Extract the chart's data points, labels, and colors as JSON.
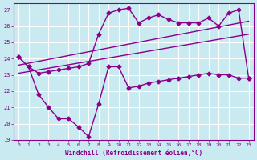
{
  "background_color": "#c8eaf0",
  "grid_color": "#ffffff",
  "line_color": "#8b008b",
  "xlabel": "Windchill (Refroidissement éolien,°C)",
  "xlim": [
    -0.5,
    23.5
  ],
  "ylim": [
    19,
    27.4
  ],
  "yticks": [
    19,
    20,
    21,
    22,
    23,
    24,
    25,
    26,
    27
  ],
  "xticks": [
    0,
    1,
    2,
    3,
    4,
    5,
    6,
    7,
    8,
    9,
    10,
    11,
    12,
    13,
    14,
    15,
    16,
    17,
    18,
    19,
    20,
    21,
    22,
    23
  ],
  "series": [
    {
      "x": [
        0,
        1,
        2,
        3,
        4,
        5,
        6,
        7,
        8,
        9,
        10,
        11,
        12,
        13,
        14,
        15,
        16,
        17,
        18,
        19,
        20,
        21,
        22,
        23
      ],
      "y": [
        24.1,
        23.5,
        23.1,
        23.2,
        23.3,
        23.4,
        23.5,
        23.7,
        25.5,
        26.8,
        27.0,
        27.1,
        26.2,
        26.5,
        26.7,
        26.4,
        26.2,
        26.2,
        26.2,
        26.5,
        26.0,
        26.8,
        27.0,
        22.8
      ],
      "marker": "D",
      "markersize": 2.5,
      "linewidth": 1.0
    },
    {
      "x": [
        0,
        1,
        2,
        3,
        4,
        5,
        6,
        7,
        8,
        9,
        10,
        11,
        12,
        13,
        14,
        15,
        16,
        17,
        18,
        19,
        20,
        21,
        22,
        23
      ],
      "y": [
        24.1,
        23.5,
        21.8,
        21.0,
        20.3,
        20.3,
        19.8,
        19.2,
        21.2,
        23.5,
        23.5,
        22.2,
        22.3,
        22.5,
        22.6,
        22.7,
        22.8,
        22.9,
        23.0,
        23.1,
        23.0,
        23.0,
        22.8,
        22.8
      ],
      "marker": "D",
      "markersize": 2.5,
      "linewidth": 1.0
    },
    {
      "x": [
        0,
        23
      ],
      "y": [
        23.6,
        26.3
      ],
      "marker": null,
      "markersize": 0,
      "linewidth": 1.0
    },
    {
      "x": [
        0,
        23
      ],
      "y": [
        23.1,
        25.5
      ],
      "marker": null,
      "markersize": 0,
      "linewidth": 1.0
    }
  ]
}
